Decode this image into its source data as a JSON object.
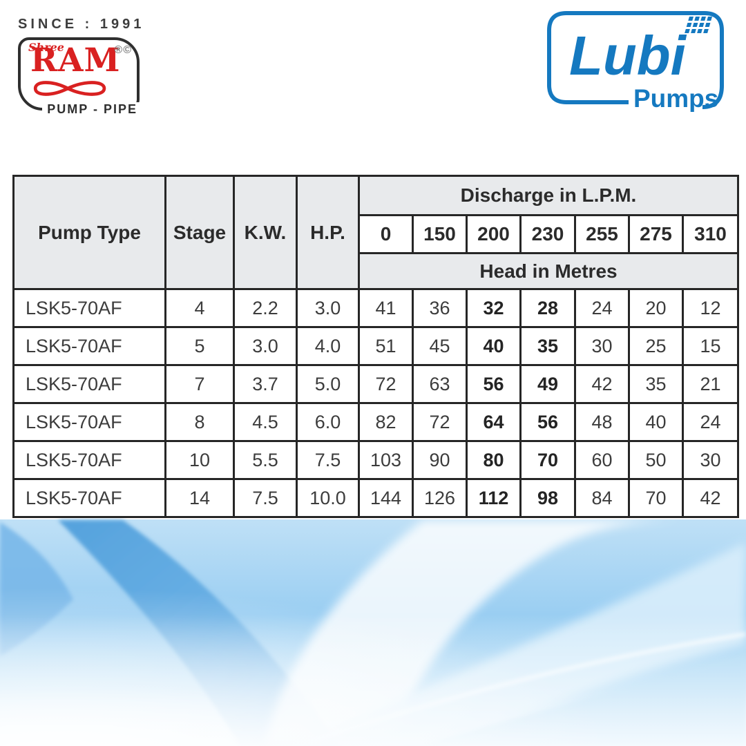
{
  "brand_left": {
    "since_text": "SINCE : 1991",
    "shree": "Shree",
    "name": "RAM",
    "marks": "®©",
    "tagline": "PUMP - PIPE",
    "red": "#d92121",
    "dark": "#2f2f2f"
  },
  "brand_right": {
    "name": "Lubi",
    "subtitle": "Pumps",
    "blue": "#1579c0"
  },
  "table": {
    "headers": {
      "pump_type": "Pump Type",
      "stage": "Stage",
      "kw": "K.W.",
      "hp": "H.P.",
      "discharge": "Discharge in L.P.M.",
      "head": "Head in Metres"
    },
    "discharge_columns": [
      "0",
      "150",
      "200",
      "230",
      "255",
      "275",
      "310"
    ],
    "bold_column_indexes": [
      2,
      3
    ],
    "rows": [
      {
        "pump_type": "LSK5-70AF",
        "stage": "4",
        "kw": "2.2",
        "hp": "3.0",
        "heads": [
          "41",
          "36",
          "32",
          "28",
          "24",
          "20",
          "12"
        ]
      },
      {
        "pump_type": "LSK5-70AF",
        "stage": "5",
        "kw": "3.0",
        "hp": "4.0",
        "heads": [
          "51",
          "45",
          "40",
          "35",
          "30",
          "25",
          "15"
        ]
      },
      {
        "pump_type": "LSK5-70AF",
        "stage": "7",
        "kw": "3.7",
        "hp": "5.0",
        "heads": [
          "72",
          "63",
          "56",
          "49",
          "42",
          "35",
          "21"
        ]
      },
      {
        "pump_type": "LSK5-70AF",
        "stage": "8",
        "kw": "4.5",
        "hp": "6.0",
        "heads": [
          "82",
          "72",
          "64",
          "56",
          "48",
          "40",
          "24"
        ]
      },
      {
        "pump_type": "LSK5-70AF",
        "stage": "10",
        "kw": "5.5",
        "hp": "7.5",
        "heads": [
          "103",
          "90",
          "80",
          "70",
          "60",
          "50",
          "30"
        ]
      },
      {
        "pump_type": "LSK5-70AF",
        "stage": "14",
        "kw": "7.5",
        "hp": "10.0",
        "heads": [
          "144",
          "126",
          "112",
          "98",
          "84",
          "70",
          "42"
        ]
      }
    ]
  },
  "colors": {
    "table_border": "#262626",
    "header_bg": "#e8eaec",
    "wave_deep_blue": "#55a2dd",
    "wave_mid_blue": "#9acef2",
    "wave_light": "#eef8fe"
  }
}
